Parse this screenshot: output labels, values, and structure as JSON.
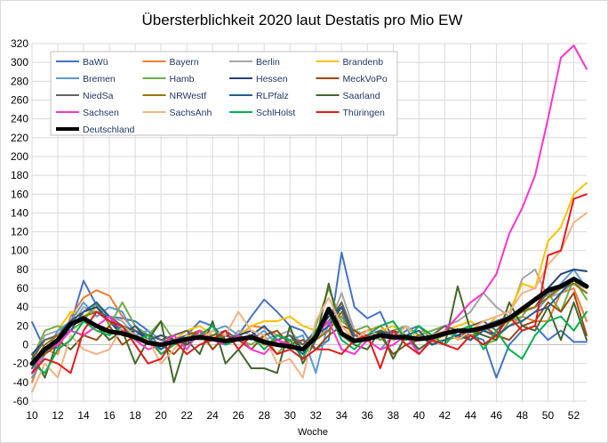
{
  "chart_data": {
    "type": "line",
    "title": "Übersterblichkeit 2020 laut Destatis pro Mio EW",
    "xlabel": "Woche",
    "ylabel": "",
    "x": [
      10,
      11,
      12,
      13,
      14,
      15,
      16,
      17,
      18,
      19,
      20,
      21,
      22,
      23,
      24,
      25,
      26,
      27,
      28,
      29,
      30,
      31,
      32,
      33,
      34,
      35,
      36,
      37,
      38,
      39,
      40,
      41,
      42,
      43,
      44,
      45,
      46,
      47,
      48,
      49,
      50,
      51,
      52,
      53
    ],
    "xticks": [
      "10",
      "12",
      "14",
      "16",
      "18",
      "20",
      "22",
      "24",
      "26",
      "28",
      "30",
      "32",
      "34",
      "36",
      "38",
      "40",
      "42",
      "44",
      "46",
      "48",
      "50",
      "52"
    ],
    "xlim": [
      10,
      53
    ],
    "ylim": [
      -60,
      320
    ],
    "yticks": [
      "-60",
      "-40",
      "-20",
      "0",
      "20",
      "40",
      "60",
      "80",
      "100",
      "120",
      "140",
      "160",
      "180",
      "200",
      "220",
      "240",
      "260",
      "280",
      "300",
      "320"
    ],
    "grid": true,
    "legend_position": "top-left",
    "series": [
      {
        "name": "BaWü",
        "color": "#4472c4",
        "width": 2,
        "values": [
          24,
          -5,
          -3,
          22,
          68,
          42,
          30,
          28,
          25,
          15,
          -5,
          5,
          10,
          25,
          20,
          5,
          10,
          30,
          48,
          35,
          20,
          15,
          -5,
          5,
          98,
          40,
          28,
          35,
          5,
          15,
          20,
          5,
          10,
          15,
          10,
          5,
          -35,
          0,
          15,
          20,
          5,
          15,
          3,
          3
        ]
      },
      {
        "name": "Bayern",
        "color": "#ed7d31",
        "width": 2,
        "values": [
          -40,
          -5,
          -10,
          30,
          50,
          58,
          52,
          30,
          15,
          5,
          -10,
          0,
          5,
          15,
          10,
          5,
          8,
          20,
          18,
          10,
          5,
          0,
          8,
          15,
          45,
          10,
          15,
          20,
          8,
          5,
          10,
          3,
          5,
          8,
          10,
          15,
          8,
          20,
          30,
          25,
          25,
          55,
          60,
          25
        ]
      },
      {
        "name": "Berlin",
        "color": "#a5a5a5",
        "width": 2,
        "values": [
          -20,
          10,
          15,
          20,
          40,
          35,
          30,
          25,
          10,
          5,
          -5,
          10,
          15,
          10,
          5,
          0,
          15,
          10,
          5,
          10,
          15,
          0,
          5,
          20,
          55,
          15,
          10,
          5,
          10,
          20,
          10,
          15,
          20,
          25,
          35,
          55,
          40,
          30,
          70,
          80,
          50,
          55,
          65,
          60
        ]
      },
      {
        "name": "Brandenb",
        "color": "#ffc000",
        "width": 2,
        "values": [
          -25,
          -10,
          15,
          35,
          30,
          40,
          25,
          15,
          10,
          5,
          0,
          5,
          15,
          20,
          10,
          5,
          10,
          20,
          25,
          25,
          30,
          20,
          15,
          25,
          30,
          5,
          10,
          15,
          20,
          10,
          15,
          10,
          15,
          20,
          25,
          15,
          30,
          35,
          65,
          60,
          110,
          125,
          160,
          172
        ]
      },
      {
        "name": "Bremen",
        "color": "#5b9bd5",
        "width": 2,
        "values": [
          -35,
          -10,
          15,
          25,
          45,
          30,
          40,
          35,
          10,
          15,
          5,
          0,
          10,
          5,
          15,
          20,
          10,
          5,
          15,
          0,
          5,
          10,
          -30,
          25,
          30,
          10,
          5,
          -5,
          10,
          20,
          -10,
          5,
          15,
          10,
          5,
          15,
          20,
          30,
          25,
          35,
          50,
          65,
          80,
          60
        ]
      },
      {
        "name": "Hamb",
        "color": "#70ad47",
        "width": 2,
        "values": [
          -15,
          15,
          20,
          15,
          25,
          45,
          20,
          45,
          20,
          10,
          25,
          5,
          10,
          15,
          -5,
          10,
          5,
          0,
          10,
          -10,
          5,
          -15,
          20,
          60,
          25,
          15,
          20,
          5,
          15,
          20,
          10,
          15,
          20,
          5,
          10,
          0,
          5,
          25,
          30,
          50,
          55,
          35,
          70,
          48
        ]
      },
      {
        "name": "Hessen",
        "color": "#264478",
        "width": 2,
        "values": [
          -10,
          5,
          10,
          25,
          35,
          40,
          25,
          10,
          15,
          5,
          10,
          5,
          0,
          10,
          20,
          5,
          10,
          15,
          0,
          5,
          10,
          -5,
          10,
          30,
          40,
          10,
          5,
          15,
          10,
          5,
          10,
          0,
          5,
          10,
          15,
          20,
          25,
          30,
          35,
          40,
          60,
          75,
          80,
          78
        ]
      },
      {
        "name": "MeckVoPo",
        "color": "#9e480e",
        "width": 2,
        "values": [
          -20,
          -10,
          0,
          15,
          10,
          5,
          20,
          0,
          10,
          5,
          0,
          -10,
          5,
          15,
          -5,
          10,
          5,
          -5,
          10,
          15,
          0,
          5,
          -5,
          10,
          20,
          15,
          5,
          10,
          -10,
          0,
          5,
          5,
          10,
          15,
          5,
          20,
          10,
          5,
          20,
          25,
          45,
          35,
          55,
          10
        ]
      },
      {
        "name": "NiedSa",
        "color": "#636363",
        "width": 2,
        "values": [
          -15,
          5,
          10,
          20,
          30,
          35,
          30,
          20,
          15,
          10,
          5,
          10,
          15,
          5,
          10,
          15,
          5,
          10,
          0,
          5,
          10,
          0,
          15,
          25,
          45,
          10,
          5,
          10,
          15,
          10,
          5,
          10,
          20,
          15,
          20,
          25,
          15,
          30,
          35,
          40,
          55,
          60,
          65,
          55
        ]
      },
      {
        "name": "NRWestf",
        "color": "#997300",
        "width": 2,
        "values": [
          -20,
          0,
          10,
          20,
          30,
          35,
          25,
          15,
          10,
          5,
          0,
          5,
          10,
          15,
          5,
          10,
          5,
          10,
          0,
          5,
          0,
          -5,
          5,
          15,
          35,
          5,
          5,
          10,
          10,
          5,
          10,
          5,
          10,
          15,
          15,
          20,
          20,
          25,
          35,
          40,
          50,
          60,
          65,
          55
        ]
      },
      {
        "name": "RLPfalz",
        "color": "#255e91",
        "width": 2,
        "values": [
          -25,
          -5,
          5,
          15,
          35,
          45,
          30,
          10,
          20,
          5,
          -5,
          5,
          10,
          5,
          15,
          10,
          5,
          10,
          20,
          5,
          0,
          -10,
          10,
          20,
          40,
          5,
          10,
          15,
          5,
          10,
          15,
          0,
          5,
          10,
          5,
          15,
          10,
          20,
          25,
          35,
          40,
          55,
          70,
          62
        ]
      },
      {
        "name": "Saarland",
        "color": "#43682b",
        "width": 2,
        "values": [
          -10,
          -35,
          5,
          -5,
          10,
          20,
          5,
          15,
          -20,
          5,
          25,
          -40,
          5,
          -10,
          25,
          -20,
          -5,
          -25,
          -25,
          -30,
          20,
          -20,
          5,
          65,
          10,
          0,
          -5,
          15,
          -15,
          10,
          -5,
          5,
          0,
          62,
          15,
          10,
          5,
          45,
          20,
          15,
          40,
          5,
          45,
          5
        ]
      },
      {
        "name": "Sachsen",
        "color": "#ff33cc",
        "width": 2,
        "values": [
          -30,
          -5,
          0,
          15,
          10,
          20,
          30,
          15,
          5,
          -5,
          0,
          10,
          -5,
          15,
          5,
          0,
          10,
          -5,
          -10,
          5,
          0,
          -5,
          10,
          25,
          -5,
          -10,
          5,
          -5,
          0,
          10,
          -10,
          5,
          15,
          30,
          45,
          55,
          75,
          118,
          145,
          180,
          240,
          305,
          318,
          293
        ]
      },
      {
        "name": "SachsAnh",
        "color": "#f4b183",
        "width": 2,
        "values": [
          -50,
          -20,
          -35,
          10,
          -5,
          -10,
          -5,
          20,
          10,
          5,
          -20,
          -5,
          10,
          5,
          15,
          10,
          35,
          15,
          10,
          -20,
          -15,
          -35,
          25,
          50,
          20,
          5,
          15,
          10,
          5,
          20,
          5,
          10,
          15,
          5,
          15,
          25,
          30,
          35,
          55,
          60,
          85,
          100,
          130,
          140
        ]
      },
      {
        "name": "SchlHolst",
        "color": "#00b050",
        "width": 2,
        "values": [
          -20,
          -30,
          -5,
          5,
          25,
          15,
          10,
          20,
          5,
          10,
          -10,
          0,
          5,
          10,
          20,
          0,
          5,
          10,
          -5,
          10,
          5,
          -15,
          15,
          35,
          5,
          -5,
          10,
          20,
          25,
          5,
          20,
          10,
          0,
          15,
          20,
          -5,
          15,
          -5,
          -15,
          10,
          25,
          30,
          15,
          35
        ]
      },
      {
        "name": "Thüringen",
        "color": "#e31a1c",
        "width": 2,
        "values": [
          -30,
          -15,
          -20,
          -30,
          15,
          35,
          25,
          20,
          0,
          -20,
          -15,
          5,
          -10,
          0,
          5,
          15,
          -5,
          10,
          5,
          -10,
          -5,
          -15,
          -5,
          -5,
          -10,
          5,
          10,
          -25,
          15,
          0,
          -10,
          5,
          0,
          -5,
          10,
          0,
          10,
          30,
          15,
          20,
          95,
          100,
          155,
          160
        ]
      },
      {
        "name": "Deutschland",
        "color": "#000000",
        "width": 5,
        "values": [
          -20,
          -5,
          5,
          22,
          28,
          20,
          14,
          12,
          8,
          2,
          0,
          3,
          6,
          8,
          6,
          4,
          6,
          8,
          3,
          0,
          -2,
          -5,
          8,
          38,
          12,
          4,
          6,
          10,
          8,
          8,
          6,
          8,
          12,
          15,
          15,
          18,
          22,
          28,
          38,
          48,
          58,
          62,
          70,
          62
        ]
      }
    ]
  }
}
